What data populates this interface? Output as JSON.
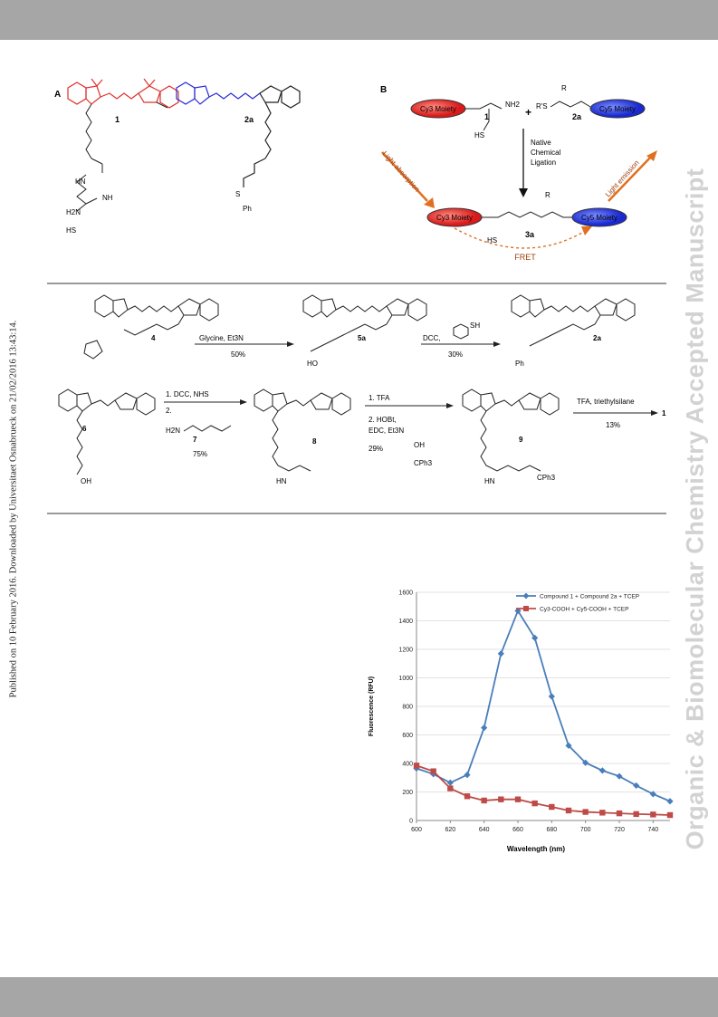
{
  "side_note": "Published on 10 February 2016. Downloaded by Universitaet Osnabrueck on 21/02/2016 13:43:14.",
  "watermark": "Organic & Biomolecular Chemistry Accepted Manuscript",
  "panel_a": {
    "label": "A",
    "compound_1": "1",
    "compound_2a": "2a",
    "ph": "Ph",
    "h2n": "H2N",
    "hs": "HS",
    "hn": "HN",
    "nh": "NH",
    "s": "S"
  },
  "panel_b": {
    "label": "B",
    "cy3": "Cy3 Moiety",
    "cy5": "Cy5 Moiety",
    "plus": "+",
    "nh2": "NH2",
    "rs": "R'S",
    "r": "R",
    "cpd1": "1",
    "cpd2a": "2a",
    "cpd3a": "3a",
    "native_1": "Native",
    "native_2": "Chemical",
    "native_3": "Ligation",
    "light_abs": "Light absorption",
    "light_em": "Light emission",
    "fret": "FRET",
    "hs": "HS"
  },
  "scheme": {
    "cpd4": "4",
    "cpd5a": "5a",
    "cpd2a": "2a",
    "cpd6": "6",
    "cpd7": "7",
    "cpd8": "8",
    "cpd9": "9",
    "cpd1": "1",
    "step1_reagent": "Glycine, Et3N",
    "step1_yield": "50%",
    "step2_reagent": "DCC,",
    "step2_yield": "30%",
    "step3_reagent_1": "1. DCC, NHS",
    "step3_reagent_2": "2.",
    "step3_yield": "75%",
    "step4_reagent_1": "1. TFA",
    "step4_reagent_2": "2. HOBt,",
    "step4_reagent_3": "EDC, Et3N",
    "step4_yield": "29%",
    "step5_reagent": "TFA, triethylsilane",
    "step5_yield": "13%",
    "ho": "HO",
    "oh": "OH",
    "sh": "SH",
    "ph": "Ph",
    "cph3": "CPh3",
    "hn": "HN",
    "nh": "NH",
    "h2n": "H2N"
  },
  "chart_data": {
    "type": "line",
    "title": "",
    "xlabel": "Wavelength (nm)",
    "ylabel": "Fluorescence (RFU)",
    "xlim": [
      600,
      750
    ],
    "ylim": [
      0,
      1600
    ],
    "xticks": [
      600,
      620,
      640,
      660,
      680,
      700,
      720,
      740
    ],
    "yticks": [
      0,
      200,
      400,
      600,
      800,
      1000,
      1200,
      1400,
      1600
    ],
    "legend_position": "top-right",
    "x": [
      600,
      610,
      620,
      630,
      640,
      650,
      660,
      670,
      680,
      690,
      700,
      710,
      720,
      730,
      740,
      750
    ],
    "series": [
      {
        "name": "Compound 1 + Compound 2a + TCEP",
        "color": "#4a7ebb",
        "marker": "diamond",
        "values": [
          365,
          325,
          265,
          320,
          650,
          1170,
          1470,
          1280,
          870,
          525,
          405,
          350,
          310,
          245,
          185,
          135
        ]
      },
      {
        "name": "Cy3-COOH + Cy5-COOH + TCEP",
        "color": "#be4b48",
        "marker": "square",
        "values": [
          385,
          345,
          225,
          170,
          140,
          148,
          148,
          120,
          95,
          70,
          60,
          55,
          50,
          45,
          42,
          38
        ]
      }
    ]
  }
}
